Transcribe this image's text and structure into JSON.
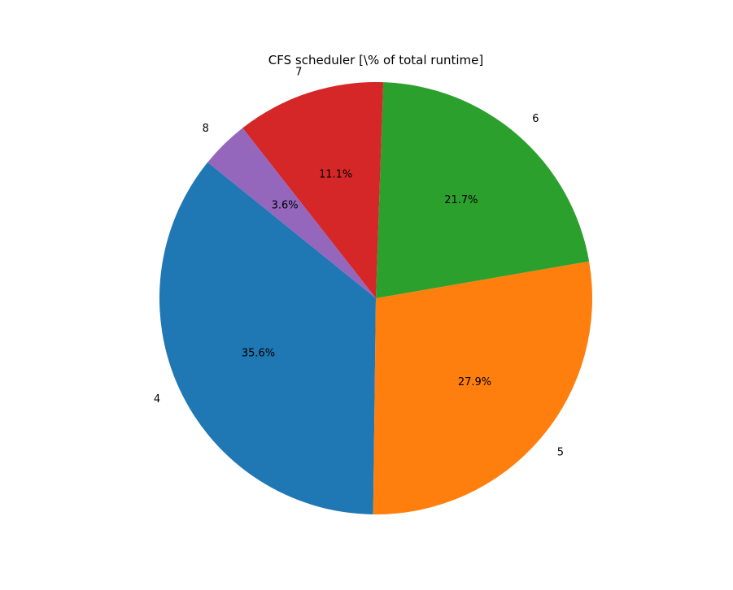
{
  "chart_data": {
    "type": "pie",
    "title": "CFS scheduler [\\% of total runtime]",
    "labels": [
      "4",
      "5",
      "6",
      "7",
      "8"
    ],
    "values": [
      35.6,
      27.9,
      21.7,
      11.1,
      3.6
    ],
    "percent_labels": [
      "35.6%",
      "27.9%",
      "21.7%",
      "11.1%",
      "3.6%"
    ],
    "colors": [
      "#1f77b4",
      "#ff7f0e",
      "#2ca02c",
      "#d62728",
      "#9467bd"
    ],
    "start_angle_deg": 141,
    "direction": "counterclockwise",
    "legend": "none"
  }
}
